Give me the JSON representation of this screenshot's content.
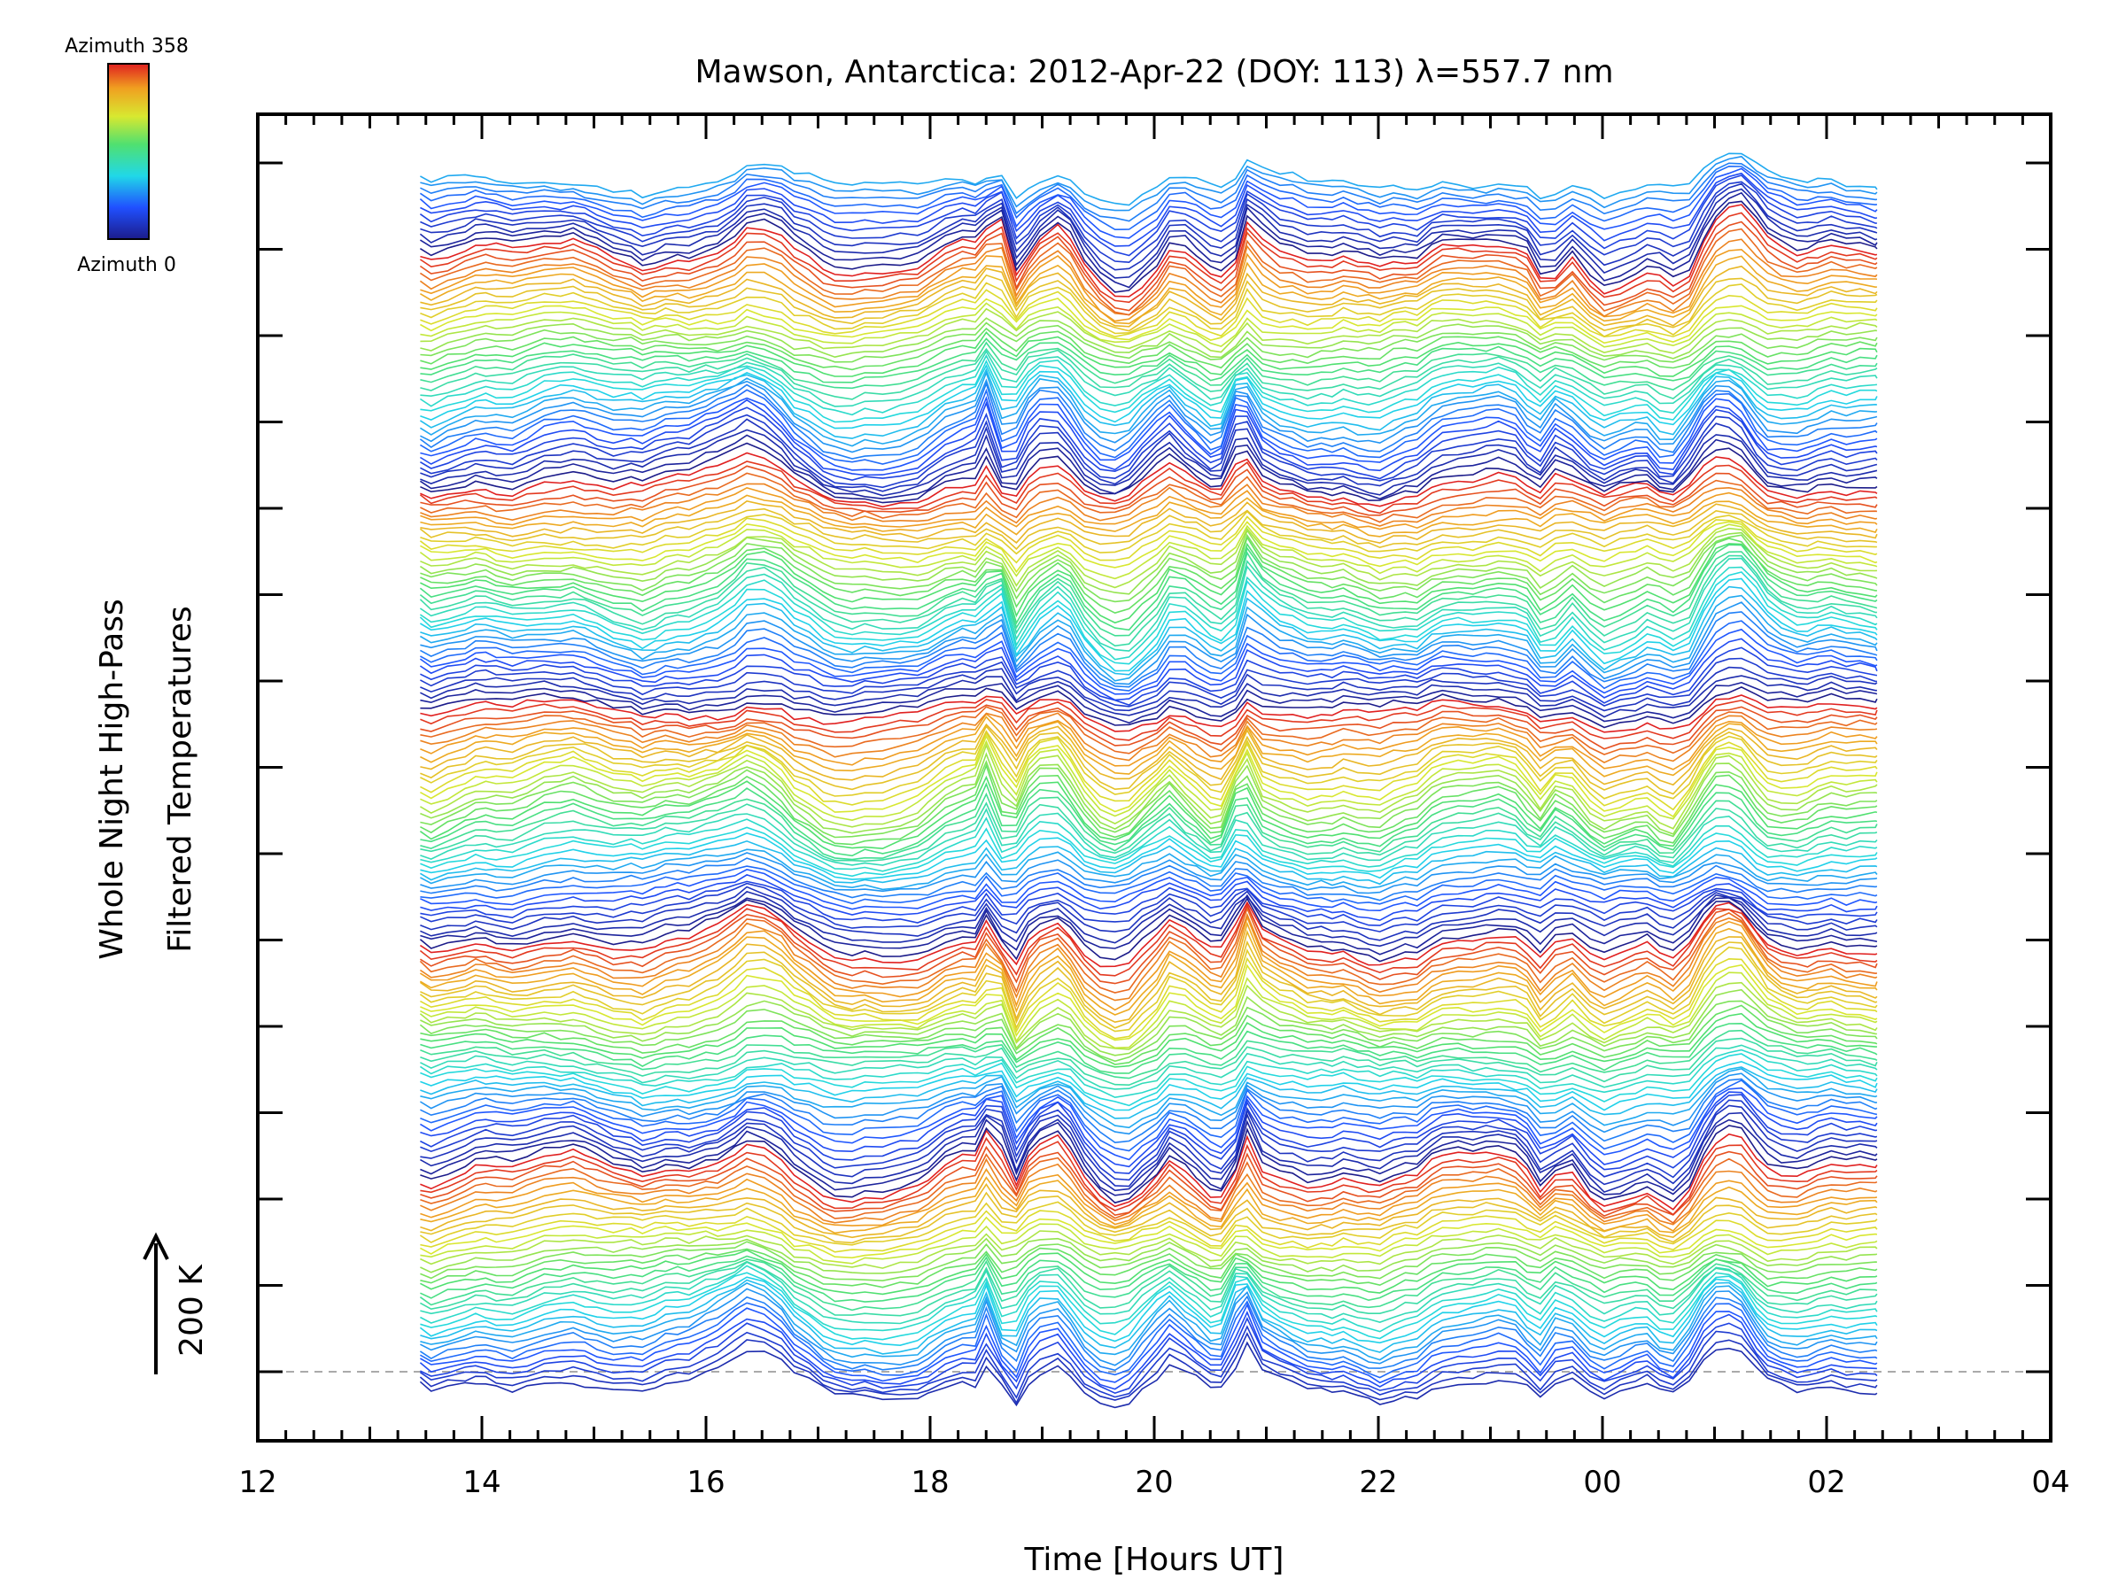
{
  "chart_data": {
    "type": "line",
    "title": "Mawson, Antarctica: 2012-Apr-22 (DOY: 113) λ=557.7 nm",
    "xlabel": "Time [Hours UT]",
    "ylabel_line1": "Whole Night High-Pass",
    "ylabel_line2": "Filtered Temperatures",
    "scale_bar_label": "200 K",
    "x_ticks": [
      "12",
      "14",
      "16",
      "18",
      "20",
      "22",
      "00",
      "02",
      "04"
    ],
    "x_range": [
      12,
      28
    ],
    "data_time_range": [
      13.45,
      26.45
    ],
    "num_y_major_ticks": 15,
    "colorbar": {
      "top_label": "Azimuth 358",
      "bottom_label": "Azimuth 0",
      "colormap": "rainbow (blue→cyan→green→yellow→orange→red)"
    },
    "series_summary": "Stacked whole-night high-pass filtered temperature traces, one per azimuth bin (0–358 deg), offset vertically and colored by azimuth. Common features: dip near 17.5 UT, sharp spikes near 18.4–18.8 UT and 20.8 UT, dips near 23.5 UT and 24.6 UT, peak near 25.1 UT.",
    "colors": {
      "axis": "#000000",
      "baseline": "#aaaaaa"
    }
  }
}
